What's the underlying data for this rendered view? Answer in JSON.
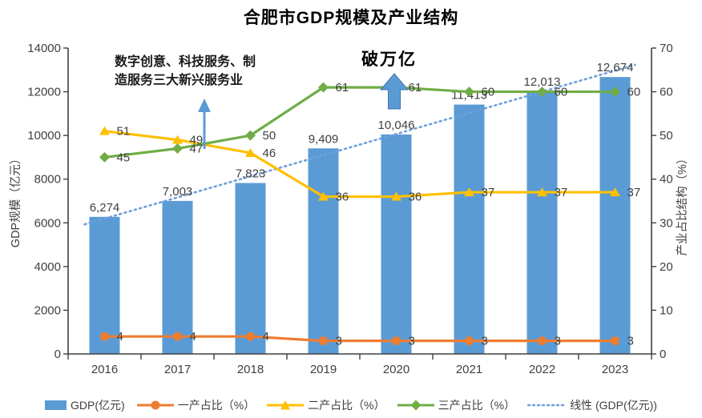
{
  "title": "合肥市GDP规模及产业结构",
  "chart_data": {
    "type": "bar+line combo",
    "categories": [
      "2016",
      "2017",
      "2018",
      "2019",
      "2020",
      "2021",
      "2022",
      "2023"
    ],
    "series": [
      {
        "name": "GDP(亿元)",
        "type": "bar",
        "axis": "left",
        "color": "#5B9BD5",
        "values": [
          6274,
          7003,
          7823,
          9409,
          10046,
          11413,
          12013,
          12674
        ],
        "labels": [
          "6,274",
          "7,003",
          "7,823",
          "9,409",
          "10,046",
          "11,413",
          "12,013",
          "12,674"
        ]
      },
      {
        "name": "一产占比（%）",
        "type": "line",
        "marker": "circle",
        "axis": "right",
        "color": "#ED7D31",
        "values": [
          4,
          4,
          4,
          3,
          3,
          3,
          3,
          3
        ]
      },
      {
        "name": "二产占比（%）",
        "type": "line",
        "marker": "triangle",
        "axis": "right",
        "color": "#FFC000",
        "values": [
          51,
          49,
          46,
          36,
          36,
          37,
          37,
          37
        ]
      },
      {
        "name": "三产占比（%）",
        "type": "line",
        "marker": "diamond",
        "axis": "right",
        "color": "#70AD47",
        "values": [
          45,
          47,
          50,
          61,
          61,
          60,
          60,
          60
        ]
      },
      {
        "name": "线性 (GDP(亿元))",
        "type": "trend",
        "style": "dotted",
        "axis": "left",
        "color": "#6FA0DC",
        "endpoints": [
          6196,
          12968
        ]
      }
    ],
    "left_axis": {
      "label": "GDP规模（亿元）",
      "min": 0,
      "max": 14000,
      "step": 2000
    },
    "right_axis": {
      "label": "产业占比结构（%）",
      "min": 0,
      "max": 70,
      "step": 10
    },
    "legend_position": "bottom",
    "grid": false
  },
  "annotations": {
    "new_services_line1": "数字创意、科技服务、制",
    "new_services_line2": "造服务三大新兴服务业",
    "trillion": "破万亿",
    "arrow_color": "#5B9BD5",
    "arrow_outline": "#4472A8"
  }
}
